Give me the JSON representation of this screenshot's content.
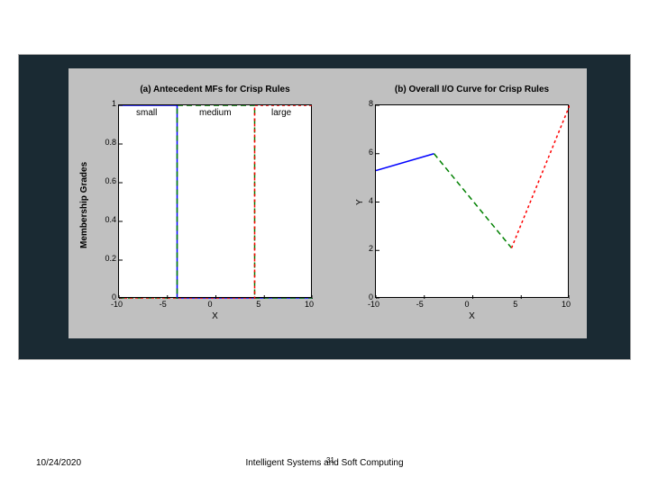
{
  "footer": {
    "date": "10/24/2020",
    "title": "Intelligent Systems and Soft Computing",
    "page": "31"
  },
  "panel_bg": "#c0c0c0",
  "slide_bg": "#1a2a33",
  "chart_a": {
    "type": "line",
    "title": "(a) Antecedent MFs for Crisp Rules",
    "xlabel": "X",
    "ylabel": "Membership Grades",
    "xlim": [
      -10,
      10
    ],
    "ylim": [
      0,
      1
    ],
    "xtick_step": 5,
    "ytick_step": 0.2,
    "xticks": [
      "-10",
      "-5",
      "0",
      "5",
      "10"
    ],
    "yticks": [
      "0",
      "0.2",
      "0.4",
      "0.6",
      "0.8",
      "1"
    ],
    "legend": {
      "small": "small",
      "medium": "medium",
      "large": "large"
    },
    "series": [
      {
        "label": "small",
        "color": "#0000ff",
        "dash": "none",
        "width": 1.5,
        "points": [
          [
            -10,
            1
          ],
          [
            -4,
            1
          ],
          [
            -4,
            0
          ],
          [
            10,
            0
          ]
        ]
      },
      {
        "label": "medium",
        "color": "#008000",
        "dash": "6,4",
        "width": 1.5,
        "points": [
          [
            -10,
            0
          ],
          [
            -4,
            0
          ],
          [
            -4,
            1
          ],
          [
            4,
            1
          ],
          [
            4,
            0
          ],
          [
            10,
            0
          ]
        ]
      },
      {
        "label": "large",
        "color": "#ff0000",
        "dash": "3,3",
        "width": 1.5,
        "points": [
          [
            -10,
            0
          ],
          [
            4,
            0
          ],
          [
            4,
            1
          ],
          [
            10,
            1
          ]
        ]
      }
    ]
  },
  "chart_b": {
    "type": "line",
    "title": "(b) Overall I/O Curve for Crisp Rules",
    "xlabel": "X",
    "ylabel": "Y",
    "xlim": [
      -10,
      10
    ],
    "ylim": [
      0,
      8
    ],
    "xtick_step": 5,
    "ytick_step": 2,
    "xticks": [
      "-10",
      "-5",
      "0",
      "5",
      "10"
    ],
    "yticks": [
      "0",
      "2",
      "4",
      "6",
      "8"
    ],
    "series": [
      {
        "color": "#0000ff",
        "dash": "none",
        "width": 1.5,
        "points": [
          [
            -10,
            5.3
          ],
          [
            -4,
            6.0
          ]
        ]
      },
      {
        "color": "#008000",
        "dash": "6,4",
        "width": 1.5,
        "points": [
          [
            -4,
            6.0
          ],
          [
            4,
            2.1
          ]
        ]
      },
      {
        "color": "#ff0000",
        "dash": "3,3",
        "width": 1.5,
        "points": [
          [
            4,
            2.1
          ],
          [
            10,
            8.0
          ]
        ]
      }
    ]
  }
}
